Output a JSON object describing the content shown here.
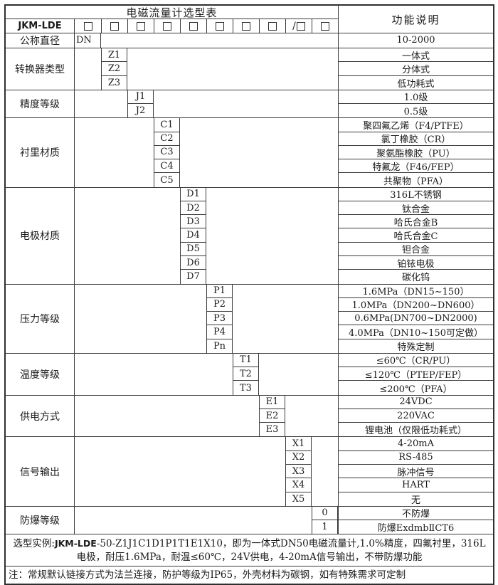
{
  "header": {
    "title": "电磁流量计选型表",
    "desc_label": "功能说明",
    "model_prefix": "JKM-LDE",
    "checkbox_prefixes": [
      "",
      "",
      "",
      "",
      "",
      "",
      "",
      "",
      "/",
      ""
    ]
  },
  "bands": [
    {
      "label": "公称直径",
      "col": 0,
      "rows": [
        {
          "code": "DN",
          "desc": "10-2000"
        }
      ]
    },
    {
      "label": "转换器类型",
      "col": 1,
      "rows": [
        {
          "code": "Z1",
          "desc": "一体式"
        },
        {
          "code": "Z2",
          "desc": "分体式"
        },
        {
          "code": "Z3",
          "desc": "低功耗式"
        }
      ]
    },
    {
      "label": "精度等级",
      "col": 2,
      "rows": [
        {
          "code": "J1",
          "desc": "1.0级"
        },
        {
          "code": "J2",
          "desc": "0.5级"
        }
      ]
    },
    {
      "label": "衬里材质",
      "col": 3,
      "rows": [
        {
          "code": "C1",
          "desc": "聚四氟乙烯（F4/PTFE）"
        },
        {
          "code": "C2",
          "desc": "氯丁橡胶（CR）"
        },
        {
          "code": "C3",
          "desc": "聚氨酯橡胶（PU）"
        },
        {
          "code": "C4",
          "desc": "特氟龙（F46/FEP）"
        },
        {
          "code": "C5",
          "desc": "共聚物（PFA）"
        }
      ]
    },
    {
      "label": "电极材质",
      "col": 4,
      "rows": [
        {
          "code": "D1",
          "desc": "316L不锈钢"
        },
        {
          "code": "D2",
          "desc": "钛合金"
        },
        {
          "code": "D3",
          "desc": "哈氏合金B"
        },
        {
          "code": "D4",
          "desc": "哈氏合金C"
        },
        {
          "code": "D5",
          "desc": "钽合金"
        },
        {
          "code": "D6",
          "desc": "铂铱电极"
        },
        {
          "code": "D7",
          "desc": "碳化钨"
        }
      ]
    },
    {
      "label": "压力等级",
      "col": 5,
      "rows": [
        {
          "code": "P1",
          "desc": "1.6MPa（DN15~150）"
        },
        {
          "code": "P2",
          "desc": "1.0MPa（DN200~DN600）"
        },
        {
          "code": "P3",
          "desc": "0.6MPa(DN700~DN2000)"
        },
        {
          "code": "P4",
          "desc": "4.0MPa（DN10~150可定做）"
        },
        {
          "code": "Pn",
          "desc": "特殊定制"
        }
      ]
    },
    {
      "label": "温度等级",
      "col": 6,
      "rows": [
        {
          "code": "T1",
          "desc": "≤60℃（CR/PU）"
        },
        {
          "code": "T2",
          "desc": "≤120℃（PTEP/FEP）"
        },
        {
          "code": "T3",
          "desc": "≤200℃（PFA）"
        }
      ]
    },
    {
      "label": "供电方式",
      "col": 7,
      "rows": [
        {
          "code": "E1",
          "desc": "24VDC"
        },
        {
          "code": "E2",
          "desc": "220VAC"
        },
        {
          "code": "E3",
          "desc": "锂电池（仅限低功耗式）"
        }
      ]
    },
    {
      "label": "信号输出",
      "col": 8,
      "rows": [
        {
          "code": "X1",
          "desc": "4-20mA"
        },
        {
          "code": "X2",
          "desc": "RS-485"
        },
        {
          "code": "X3",
          "desc": "脉冲信号"
        },
        {
          "code": "X4",
          "desc": "HART"
        },
        {
          "code": "X5",
          "desc": "无"
        }
      ]
    },
    {
      "label": "防爆等级",
      "col": 9,
      "rows": [
        {
          "code": "0",
          "desc": "不防爆"
        },
        {
          "code": "1",
          "desc": "防爆ExdmbⅡCT6"
        }
      ]
    }
  ],
  "footer": {
    "example_prefix": "选型实例:",
    "example_model": "JKM-LDE",
    "example_rest": "-50-Z1J1C1D1P1T1E1X10，即为一体式DN50电磁流量计,1.0%精度，四氟衬里，316L电极，耐压1.6MPa，耐温≤60℃，24V供电，4-20mA信号输出，不带防爆功能",
    "note": "注：常规默认链接方式为法兰连接，防护等级为IP65，外壳材料为碳钢，如有特殊需求可定制"
  },
  "colors": {
    "border": "#3a3a3a",
    "outer_border": "#2f2f2f",
    "text": "#1b1b1b",
    "background": "#ffffff"
  }
}
